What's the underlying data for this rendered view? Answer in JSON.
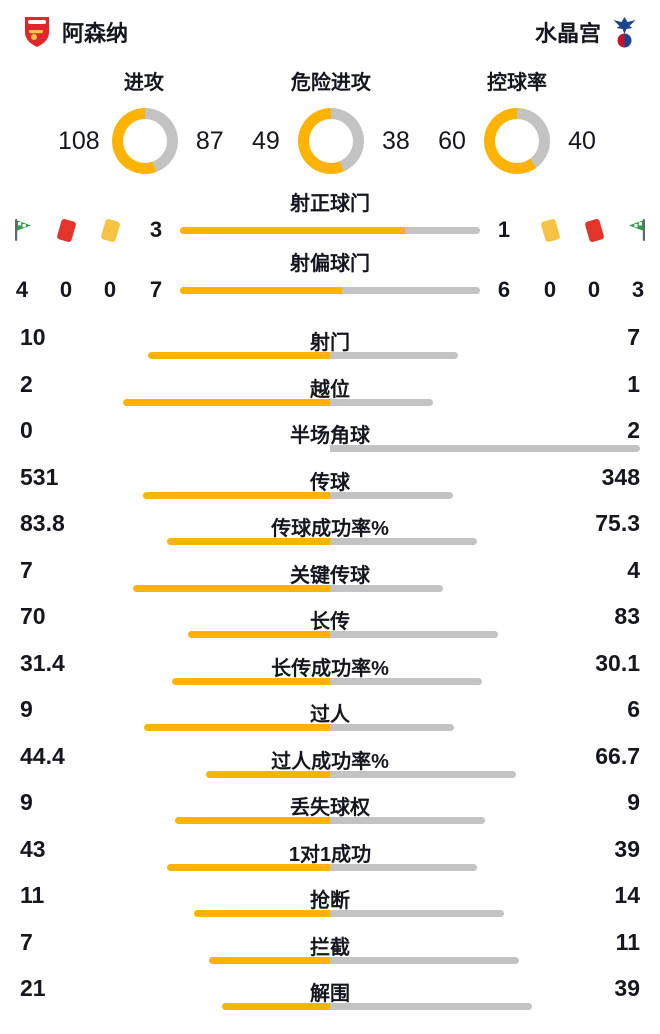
{
  "header": {
    "home": {
      "name": "阿森纳"
    },
    "away": {
      "name": "水晶宫"
    }
  },
  "colors": {
    "home": "#FDB300",
    "away": "#C3C3C3",
    "text": "#15171E",
    "red_card": "#E5342C",
    "yellow_card": "#F6C344"
  },
  "chart_data": {
    "type": "table",
    "teams": [
      "阿森纳",
      "水晶宫"
    ],
    "donuts": [
      {
        "label": "进攻",
        "home": 108,
        "away": 87
      },
      {
        "label": "危险进攻",
        "home": 49,
        "away": 38
      },
      {
        "label": "控球率",
        "home": 60,
        "away": 40
      }
    ],
    "shot_bars": [
      {
        "label": "射正球门",
        "home": 3,
        "away": 1
      },
      {
        "label": "射偏球门",
        "home": 7,
        "away": 6
      }
    ],
    "events": {
      "home": {
        "corners": 4,
        "red_cards": 0,
        "yellow_cards": 0
      },
      "away": {
        "corners": 3,
        "red_cards": 0,
        "yellow_cards": 0
      }
    },
    "stats": [
      {
        "label": "射门",
        "home": 10,
        "away": 7
      },
      {
        "label": "越位",
        "home": 2,
        "away": 1
      },
      {
        "label": "半场角球",
        "home": 0,
        "away": 2
      },
      {
        "label": "传球",
        "home": 531,
        "away": 348
      },
      {
        "label": "传球成功率%",
        "home": 83.8,
        "away": 75.3
      },
      {
        "label": "关键传球",
        "home": 7,
        "away": 4
      },
      {
        "label": "长传",
        "home": 70,
        "away": 83
      },
      {
        "label": "长传成功率%",
        "home": 31.4,
        "away": 30.1
      },
      {
        "label": "过人",
        "home": 9,
        "away": 6
      },
      {
        "label": "过人成功率%",
        "home": 44.4,
        "away": 66.7
      },
      {
        "label": "丢失球权",
        "home": 9,
        "away": 9
      },
      {
        "label": "1对1成功",
        "home": 43,
        "away": 39
      },
      {
        "label": "抢断",
        "home": 11,
        "away": 14
      },
      {
        "label": "拦截",
        "home": 7,
        "away": 11
      },
      {
        "label": "解围",
        "home": 21,
        "away": 39
      }
    ]
  }
}
